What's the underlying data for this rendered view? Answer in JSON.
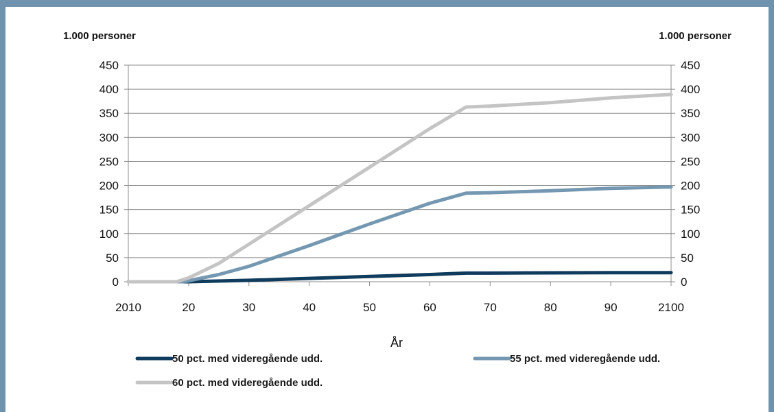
{
  "colors": {
    "frame": "#6f93ad",
    "panel": "#ffffff",
    "grid": "#8c8c8c",
    "series": [
      "#0f3b5c",
      "#7598b2",
      "#c4c4c4"
    ]
  },
  "chart_data": {
    "type": "line",
    "title": "",
    "xlabel": "År",
    "ylabel_left": "1.000 personer",
    "ylabel_right": "1.000 personer",
    "xlim": [
      2010,
      2100
    ],
    "ylim": [
      0,
      450
    ],
    "x_ticks": [
      2010,
      2020,
      2030,
      2040,
      2050,
      2060,
      2070,
      2080,
      2090,
      2100
    ],
    "x_tick_labels": [
      "2010",
      "20",
      "30",
      "40",
      "50",
      "60",
      "70",
      "80",
      "90",
      "2100"
    ],
    "y_ticks": [
      0,
      50,
      100,
      150,
      200,
      250,
      300,
      350,
      400,
      450
    ],
    "y_tick_labels": [
      "0",
      "50",
      "100",
      "150",
      "200",
      "250",
      "300",
      "350",
      "400",
      "450"
    ],
    "grid": "horizontal",
    "legend_position": "bottom",
    "series": [
      {
        "name": "50 pct. med videregående udd.",
        "x": [
          2010,
          2019,
          2020,
          2030,
          2040,
          2050,
          2060,
          2066,
          2070,
          2080,
          2090,
          2100
        ],
        "values": [
          0,
          0,
          0,
          3,
          7,
          11,
          15,
          18,
          18,
          18.5,
          19,
          19
        ]
      },
      {
        "name": "55 pct. med videregående udd.",
        "x": [
          2010,
          2019,
          2020,
          2025,
          2030,
          2040,
          2050,
          2060,
          2066,
          2070,
          2080,
          2090,
          2100
        ],
        "values": [
          0,
          0,
          2,
          15,
          32,
          75,
          120,
          163,
          184,
          185,
          189,
          194,
          197
        ]
      },
      {
        "name": "60 pct. med videregående udd.",
        "x": [
          2010,
          2018,
          2020,
          2025,
          2030,
          2040,
          2050,
          2060,
          2066,
          2070,
          2080,
          2090,
          2100
        ],
        "values": [
          0,
          0,
          8,
          38,
          78,
          158,
          238,
          318,
          363,
          365,
          372,
          382,
          389
        ]
      }
    ]
  }
}
